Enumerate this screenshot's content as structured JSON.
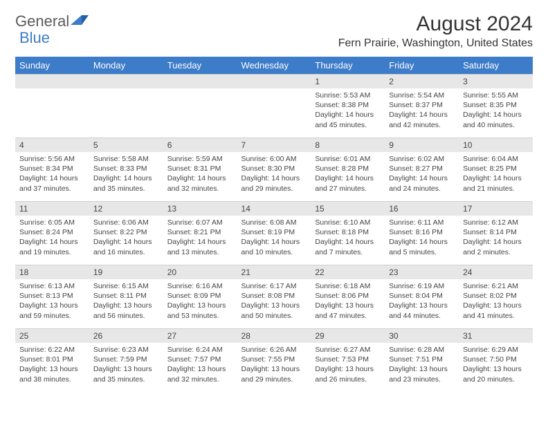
{
  "logo": {
    "text1": "General",
    "text2": "Blue"
  },
  "title": "August 2024",
  "location": "Fern Prairie, Washington, United States",
  "colors": {
    "header_bg": "#3d7cc9",
    "header_fg": "#ffffff",
    "daynum_bg": "#e7e7e7",
    "body_bg": "#ffffff",
    "text": "#444444",
    "logo_blue": "#3d7cc9",
    "logo_gray": "#5a5a5a"
  },
  "font": {
    "family": "Arial",
    "title_size_pt": 22,
    "location_size_pt": 12,
    "header_size_pt": 10,
    "body_size_pt": 8
  },
  "weekdays": [
    "Sunday",
    "Monday",
    "Tuesday",
    "Wednesday",
    "Thursday",
    "Friday",
    "Saturday"
  ],
  "days": [
    {
      "n": "1",
      "sunrise": "5:53 AM",
      "sunset": "8:38 PM",
      "daylight": "14 hours and 45 minutes."
    },
    {
      "n": "2",
      "sunrise": "5:54 AM",
      "sunset": "8:37 PM",
      "daylight": "14 hours and 42 minutes."
    },
    {
      "n": "3",
      "sunrise": "5:55 AM",
      "sunset": "8:35 PM",
      "daylight": "14 hours and 40 minutes."
    },
    {
      "n": "4",
      "sunrise": "5:56 AM",
      "sunset": "8:34 PM",
      "daylight": "14 hours and 37 minutes."
    },
    {
      "n": "5",
      "sunrise": "5:58 AM",
      "sunset": "8:33 PM",
      "daylight": "14 hours and 35 minutes."
    },
    {
      "n": "6",
      "sunrise": "5:59 AM",
      "sunset": "8:31 PM",
      "daylight": "14 hours and 32 minutes."
    },
    {
      "n": "7",
      "sunrise": "6:00 AM",
      "sunset": "8:30 PM",
      "daylight": "14 hours and 29 minutes."
    },
    {
      "n": "8",
      "sunrise": "6:01 AM",
      "sunset": "8:28 PM",
      "daylight": "14 hours and 27 minutes."
    },
    {
      "n": "9",
      "sunrise": "6:02 AM",
      "sunset": "8:27 PM",
      "daylight": "14 hours and 24 minutes."
    },
    {
      "n": "10",
      "sunrise": "6:04 AM",
      "sunset": "8:25 PM",
      "daylight": "14 hours and 21 minutes."
    },
    {
      "n": "11",
      "sunrise": "6:05 AM",
      "sunset": "8:24 PM",
      "daylight": "14 hours and 19 minutes."
    },
    {
      "n": "12",
      "sunrise": "6:06 AM",
      "sunset": "8:22 PM",
      "daylight": "14 hours and 16 minutes."
    },
    {
      "n": "13",
      "sunrise": "6:07 AM",
      "sunset": "8:21 PM",
      "daylight": "14 hours and 13 minutes."
    },
    {
      "n": "14",
      "sunrise": "6:08 AM",
      "sunset": "8:19 PM",
      "daylight": "14 hours and 10 minutes."
    },
    {
      "n": "15",
      "sunrise": "6:10 AM",
      "sunset": "8:18 PM",
      "daylight": "14 hours and 7 minutes."
    },
    {
      "n": "16",
      "sunrise": "6:11 AM",
      "sunset": "8:16 PM",
      "daylight": "14 hours and 5 minutes."
    },
    {
      "n": "17",
      "sunrise": "6:12 AM",
      "sunset": "8:14 PM",
      "daylight": "14 hours and 2 minutes."
    },
    {
      "n": "18",
      "sunrise": "6:13 AM",
      "sunset": "8:13 PM",
      "daylight": "13 hours and 59 minutes."
    },
    {
      "n": "19",
      "sunrise": "6:15 AM",
      "sunset": "8:11 PM",
      "daylight": "13 hours and 56 minutes."
    },
    {
      "n": "20",
      "sunrise": "6:16 AM",
      "sunset": "8:09 PM",
      "daylight": "13 hours and 53 minutes."
    },
    {
      "n": "21",
      "sunrise": "6:17 AM",
      "sunset": "8:08 PM",
      "daylight": "13 hours and 50 minutes."
    },
    {
      "n": "22",
      "sunrise": "6:18 AM",
      "sunset": "8:06 PM",
      "daylight": "13 hours and 47 minutes."
    },
    {
      "n": "23",
      "sunrise": "6:19 AM",
      "sunset": "8:04 PM",
      "daylight": "13 hours and 44 minutes."
    },
    {
      "n": "24",
      "sunrise": "6:21 AM",
      "sunset": "8:02 PM",
      "daylight": "13 hours and 41 minutes."
    },
    {
      "n": "25",
      "sunrise": "6:22 AM",
      "sunset": "8:01 PM",
      "daylight": "13 hours and 38 minutes."
    },
    {
      "n": "26",
      "sunrise": "6:23 AM",
      "sunset": "7:59 PM",
      "daylight": "13 hours and 35 minutes."
    },
    {
      "n": "27",
      "sunrise": "6:24 AM",
      "sunset": "7:57 PM",
      "daylight": "13 hours and 32 minutes."
    },
    {
      "n": "28",
      "sunrise": "6:26 AM",
      "sunset": "7:55 PM",
      "daylight": "13 hours and 29 minutes."
    },
    {
      "n": "29",
      "sunrise": "6:27 AM",
      "sunset": "7:53 PM",
      "daylight": "13 hours and 26 minutes."
    },
    {
      "n": "30",
      "sunrise": "6:28 AM",
      "sunset": "7:51 PM",
      "daylight": "13 hours and 23 minutes."
    },
    {
      "n": "31",
      "sunrise": "6:29 AM",
      "sunset": "7:50 PM",
      "daylight": "13 hours and 20 minutes."
    }
  ],
  "labels": {
    "sunrise": "Sunrise:",
    "sunset": "Sunset:",
    "daylight": "Daylight:"
  },
  "layout": {
    "first_weekday_index": 4,
    "rows": 5,
    "cols": 7
  }
}
